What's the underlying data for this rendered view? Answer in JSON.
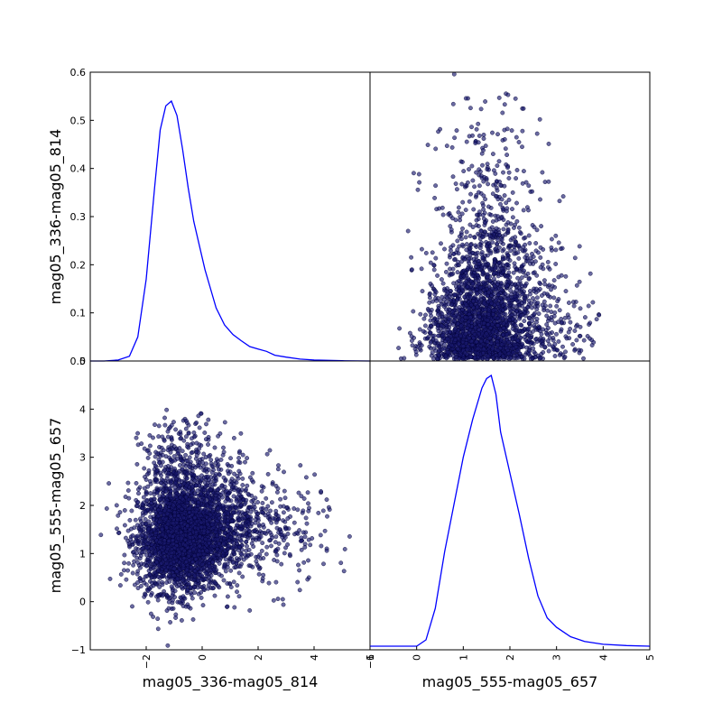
{
  "chart_data": {
    "type": "scatter_matrix",
    "variables": [
      "mag05_336-mag05_814",
      "mag05_555-mag05_657"
    ],
    "axes": {
      "x1": {
        "range": [
          -4,
          6
        ],
        "ticks": [
          -2,
          0,
          2,
          4,
          6
        ],
        "tick_labels": [
          "−2",
          "0",
          "2",
          "4",
          "6"
        ]
      },
      "x2": {
        "range": [
          -1,
          5
        ],
        "ticks": [
          -1,
          0,
          1,
          2,
          3,
          4,
          5
        ],
        "tick_labels": [
          "−1",
          "0",
          "1",
          "2",
          "3",
          "4",
          "5"
        ]
      },
      "density_y": {
        "range": [
          0,
          0.6
        ],
        "ticks": [
          0,
          0.1,
          0.2,
          0.3,
          0.4,
          0.5,
          0.6
        ],
        "tick_labels": [
          "0.0",
          "0.1",
          "0.2",
          "0.3",
          "0.4",
          "0.5",
          "0.6"
        ]
      },
      "y2": {
        "range": [
          -1,
          5
        ],
        "ticks": [
          -1,
          0,
          1,
          2,
          3,
          4,
          5
        ],
        "tick_labels": [
          "−1",
          "0",
          "1",
          "2",
          "3",
          "4",
          "5"
        ]
      }
    },
    "labels": {
      "xlabel_left": "mag05_336-mag05_814",
      "xlabel_right": "mag05_555-mag05_657",
      "ylabel_top": "mag05_336-mag05_814",
      "ylabel_bottom": "mag05_555-mag05_657"
    },
    "kde_var1": {
      "x": [
        -4,
        -3.5,
        -3,
        -2.6,
        -2.3,
        -2,
        -1.7,
        -1.5,
        -1.3,
        -1.1,
        -0.9,
        -0.7,
        -0.5,
        -0.3,
        -0.1,
        0.1,
        0.3,
        0.5,
        0.8,
        1.1,
        1.4,
        1.7,
        2.0,
        2.3,
        2.6,
        3.0,
        3.5,
        4.0,
        5.0,
        6.0
      ],
      "y": [
        0.0,
        0.0,
        0.002,
        0.01,
        0.05,
        0.17,
        0.36,
        0.48,
        0.53,
        0.54,
        0.51,
        0.44,
        0.36,
        0.29,
        0.24,
        0.19,
        0.15,
        0.11,
        0.075,
        0.055,
        0.042,
        0.03,
        0.025,
        0.02,
        0.012,
        0.008,
        0.004,
        0.002,
        0.0005,
        0.0
      ]
    },
    "kde_var2": {
      "x": [
        -1,
        -0.5,
        0,
        0.2,
        0.4,
        0.6,
        0.8,
        1.0,
        1.2,
        1.4,
        1.5,
        1.6,
        1.7,
        1.8,
        2.0,
        2.2,
        2.4,
        2.6,
        2.8,
        3.0,
        3.3,
        3.6,
        4.0,
        4.5,
        5.0
      ],
      "y": [
        0.0,
        0.0,
        0.0,
        0.02,
        0.12,
        0.3,
        0.45,
        0.6,
        0.72,
        0.82,
        0.85,
        0.86,
        0.8,
        0.68,
        0.55,
        0.42,
        0.28,
        0.16,
        0.09,
        0.06,
        0.03,
        0.015,
        0.006,
        0.002,
        0.0
      ]
    },
    "scatter_clusters": [
      {
        "cx": -0.8,
        "cy": 1.3,
        "sx": 0.75,
        "sy": 0.55,
        "n": 2600
      },
      {
        "cx": 0.6,
        "cy": 1.6,
        "sx": 0.9,
        "sy": 0.55,
        "n": 700
      },
      {
        "cx": 2.2,
        "cy": 1.5,
        "sx": 1.2,
        "sy": 0.6,
        "n": 260
      },
      {
        "cx": -0.6,
        "cy": 2.8,
        "sx": 0.8,
        "sy": 0.5,
        "n": 350
      }
    ],
    "grid": false,
    "legend": "none"
  }
}
